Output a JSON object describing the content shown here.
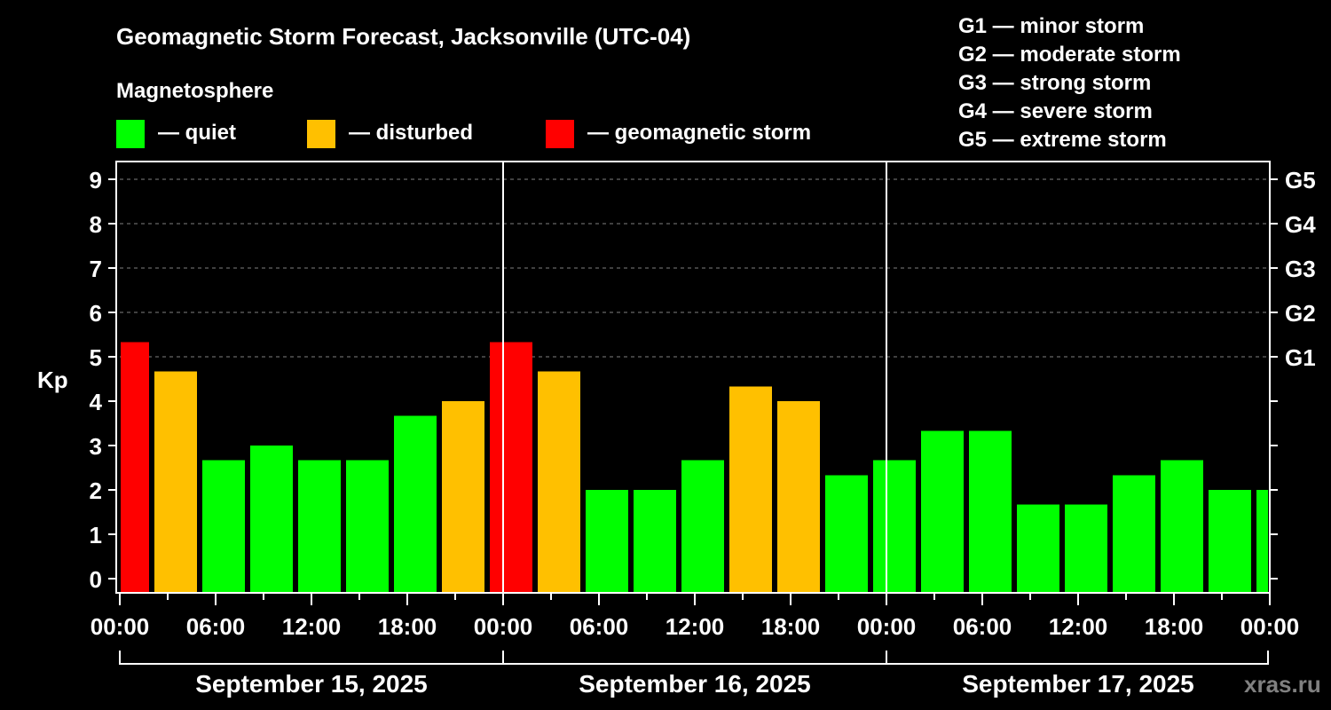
{
  "chart_data": {
    "type": "bar",
    "title": "Geomagnetic Storm Forecast, Jacksonville (UTC-04)",
    "legend_title": "Magnetosphere",
    "legend": [
      {
        "label": "— quiet",
        "color": "#00ff00"
      },
      {
        "label": "— disturbed",
        "color": "#ffc000"
      },
      {
        "label": "— geomagnetic storm",
        "color": "#ff0000"
      }
    ],
    "storm_scale": [
      "G1 — minor storm",
      "G2 — moderate storm",
      "G3 — strong storm",
      "G4 — severe storm",
      "G5 — extreme storm"
    ],
    "ylabel": "Kp",
    "ylim": [
      -0.33,
      9.4
    ],
    "yticks": [
      "0",
      "1",
      "2",
      "3",
      "4",
      "5",
      "6",
      "7",
      "8",
      "9"
    ],
    "right_ticks": [
      {
        "value": 5,
        "label": "G1"
      },
      {
        "value": 6,
        "label": "G2"
      },
      {
        "value": 7,
        "label": "G3"
      },
      {
        "value": 8,
        "label": "G4"
      },
      {
        "value": 9,
        "label": "G5"
      }
    ],
    "xticks": [
      "00:00",
      "06:00",
      "12:00",
      "18:00",
      "00:00",
      "06:00",
      "12:00",
      "18:00",
      "00:00",
      "06:00",
      "12:00",
      "18:00",
      "00:00"
    ],
    "days": [
      "September 15, 2025",
      "September 16, 2025",
      "September 17, 2025"
    ],
    "x_hours": [
      0.5,
      3.5,
      6.5,
      9.5,
      12.5,
      15.5,
      18.5,
      21.5,
      24.5,
      27.5,
      30.5,
      33.5,
      36.5,
      39.5,
      42.5,
      45.5,
      48.5,
      51.5,
      54.5,
      57.5,
      60.5,
      63.5,
      66.5,
      69.5,
      72.5
    ],
    "values": [
      5.33,
      4.67,
      2.67,
      3.0,
      2.67,
      2.67,
      3.67,
      4.0,
      5.33,
      4.67,
      2.0,
      2.0,
      2.67,
      4.33,
      4.0,
      2.33,
      2.67,
      3.33,
      3.33,
      1.67,
      1.67,
      2.33,
      2.67,
      2.0,
      2.0
    ],
    "grid": true,
    "watermark": "xras.ru"
  }
}
